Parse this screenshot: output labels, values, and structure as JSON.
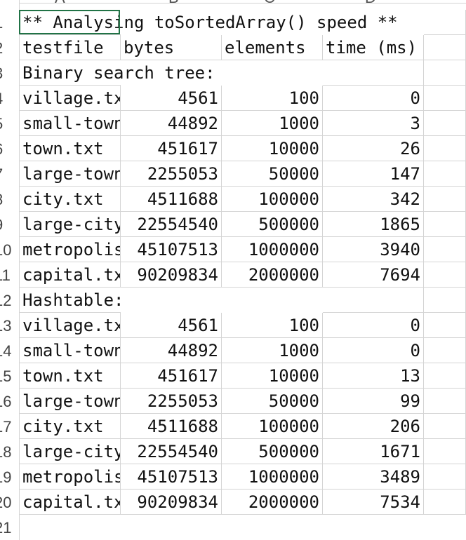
{
  "columns": [
    "A",
    "B",
    "C",
    "D"
  ],
  "row_numbers": [
    "1",
    "2",
    "3",
    "4",
    "5",
    "6",
    "7",
    "8",
    "9",
    "10",
    "11",
    "12",
    "13",
    "14",
    "15",
    "16",
    "17",
    "18",
    "19",
    "20",
    "21"
  ],
  "title": "** Analysing toSortedArray() speed **",
  "headers": {
    "testfile": "testfile",
    "bytes": "bytes",
    "elements": "elements",
    "time": "time (ms)"
  },
  "sections": [
    {
      "label": "Binary search tree:",
      "rows": [
        {
          "file": "village.txt",
          "bytes": "4561",
          "elements": "100",
          "time": "0"
        },
        {
          "file": "small-town.txt",
          "bytes": "44892",
          "elements": "1000",
          "time": "3"
        },
        {
          "file": "town.txt",
          "bytes": "451617",
          "elements": "10000",
          "time": "26"
        },
        {
          "file": "large-town.txt",
          "bytes": "2255053",
          "elements": "50000",
          "time": "147"
        },
        {
          "file": "city.txt",
          "bytes": "4511688",
          "elements": "100000",
          "time": "342"
        },
        {
          "file": "large-city.txt",
          "bytes": "22554540",
          "elements": "500000",
          "time": "1865"
        },
        {
          "file": "metropolis.txt",
          "bytes": "45107513",
          "elements": "1000000",
          "time": "3940"
        },
        {
          "file": "capital.txt",
          "bytes": "90209834",
          "elements": "2000000",
          "time": "7694"
        }
      ]
    },
    {
      "label": "Hashtable:",
      "rows": [
        {
          "file": "village.txt",
          "bytes": "4561",
          "elements": "100",
          "time": "0"
        },
        {
          "file": "small-town.txt",
          "bytes": "44892",
          "elements": "1000",
          "time": "0"
        },
        {
          "file": "town.txt",
          "bytes": "451617",
          "elements": "10000",
          "time": "13"
        },
        {
          "file": "large-town.txt",
          "bytes": "2255053",
          "elements": "50000",
          "time": "99"
        },
        {
          "file": "city.txt",
          "bytes": "4511688",
          "elements": "100000",
          "time": "206"
        },
        {
          "file": "large-city.txt",
          "bytes": "22554540",
          "elements": "500000",
          "time": "1671"
        },
        {
          "file": "metropolis.txt",
          "bytes": "45107513",
          "elements": "1000000",
          "time": "3489"
        },
        {
          "file": "capital.txt",
          "bytes": "90209834",
          "elements": "2000000",
          "time": "7534"
        }
      ]
    }
  ]
}
